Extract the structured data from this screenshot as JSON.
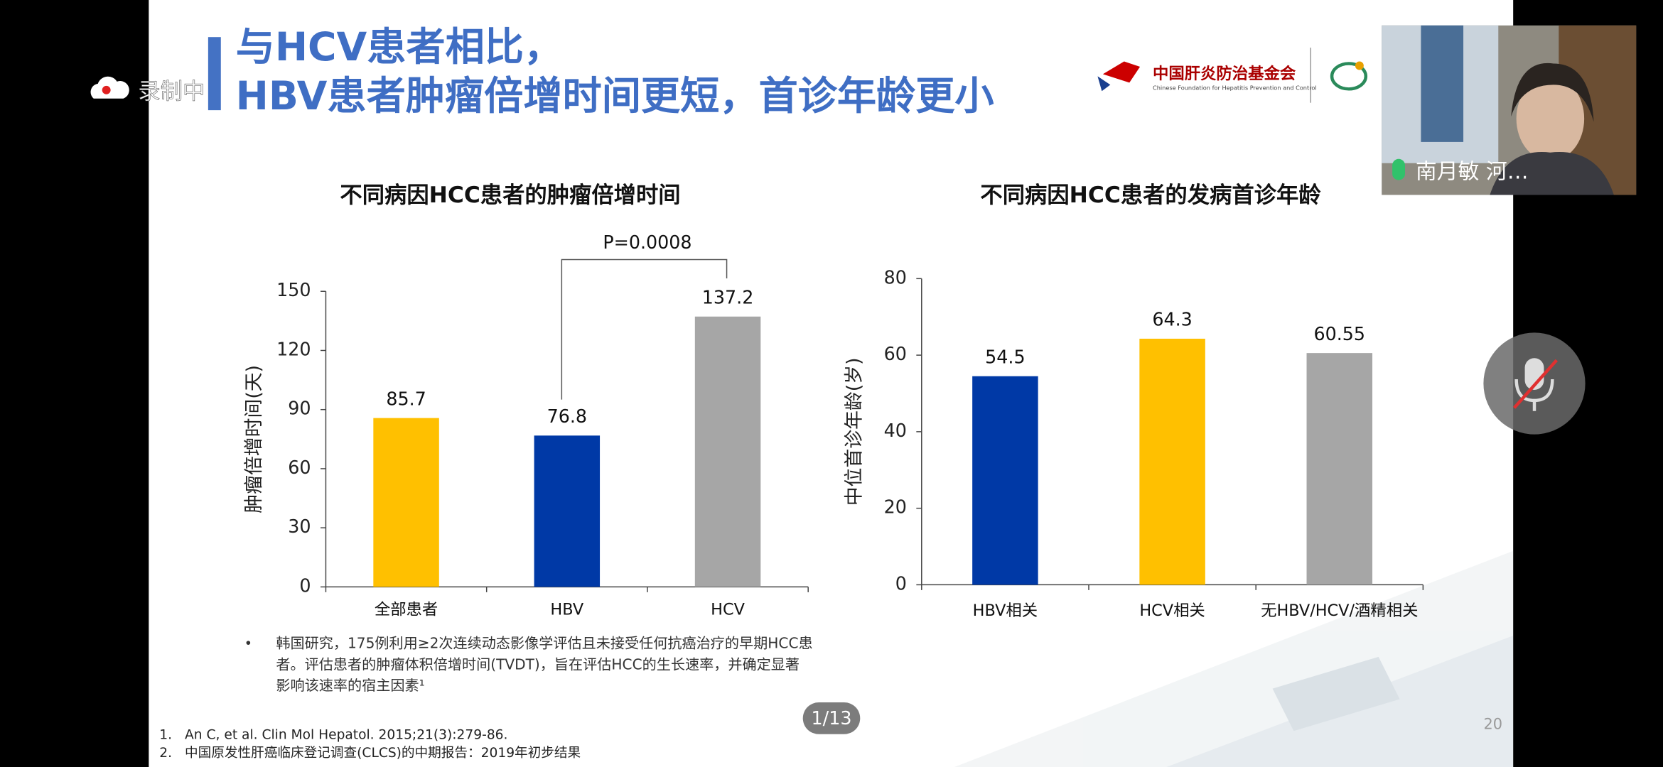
{
  "recording": "录制中",
  "slide": {
    "title_lines": [
      "与HCV患者相比，",
      "HBV患者肿瘤倍增时间更短，首诊年龄更小"
    ],
    "logo": {
      "name": "中国肝炎防治基金会",
      "name_en": "Chinese Foundation for Hepatitis Prevention and Control"
    },
    "bullet": {
      "marker": "•",
      "lines": [
        "韩国研究，175例利用≥2次连续动态影像学评估且未接受任何抗癌治疗的早期HCC患",
        "者。评估患者的肿瘤体积倍增时间(TVDT)，旨在评估HCC的生长速率，并确定显著",
        "影响该速率的宿主因素¹"
      ]
    },
    "references": [
      {
        "number": "1.",
        "text": "An C, et al. Clin Mol Hepatol. 2015;21(3):279-86."
      },
      {
        "number": "2.",
        "text": "中国原发性肝癌临床登记调查(CLCS)的中期报告：2019年初步结果"
      }
    ],
    "page_number": "20"
  },
  "pager": "1/13",
  "participant": "南月敏 河…",
  "chart_data": [
    {
      "type": "bar",
      "title": "不同病因HCC患者的肿瘤倍增时间",
      "y_label": "肿瘤倍增时间(天)",
      "categories": [
        "全部患者",
        "HBV",
        "HCV"
      ],
      "values": [
        85.7,
        76.8,
        137.2
      ],
      "colors": [
        "#ffc000",
        "#0039a6",
        "#a6a6a6"
      ],
      "ylim": [
        0,
        150
      ],
      "yticks": [
        0,
        30,
        60,
        90,
        120,
        150
      ],
      "annotation": "P=0.0008"
    },
    {
      "type": "bar",
      "title": "不同病因HCC患者的发病首诊年龄",
      "y_label": "中位首诊年龄(岁)",
      "categories": [
        "HBV相关",
        "HCV相关",
        "无HBV/HCV/酒精相关"
      ],
      "values": [
        54.5,
        64.3,
        60.55
      ],
      "colors": [
        "#0039a6",
        "#ffc000",
        "#a6a6a6"
      ],
      "ylim": [
        0,
        80
      ],
      "yticks": [
        0,
        20,
        40,
        60,
        80
      ]
    }
  ]
}
